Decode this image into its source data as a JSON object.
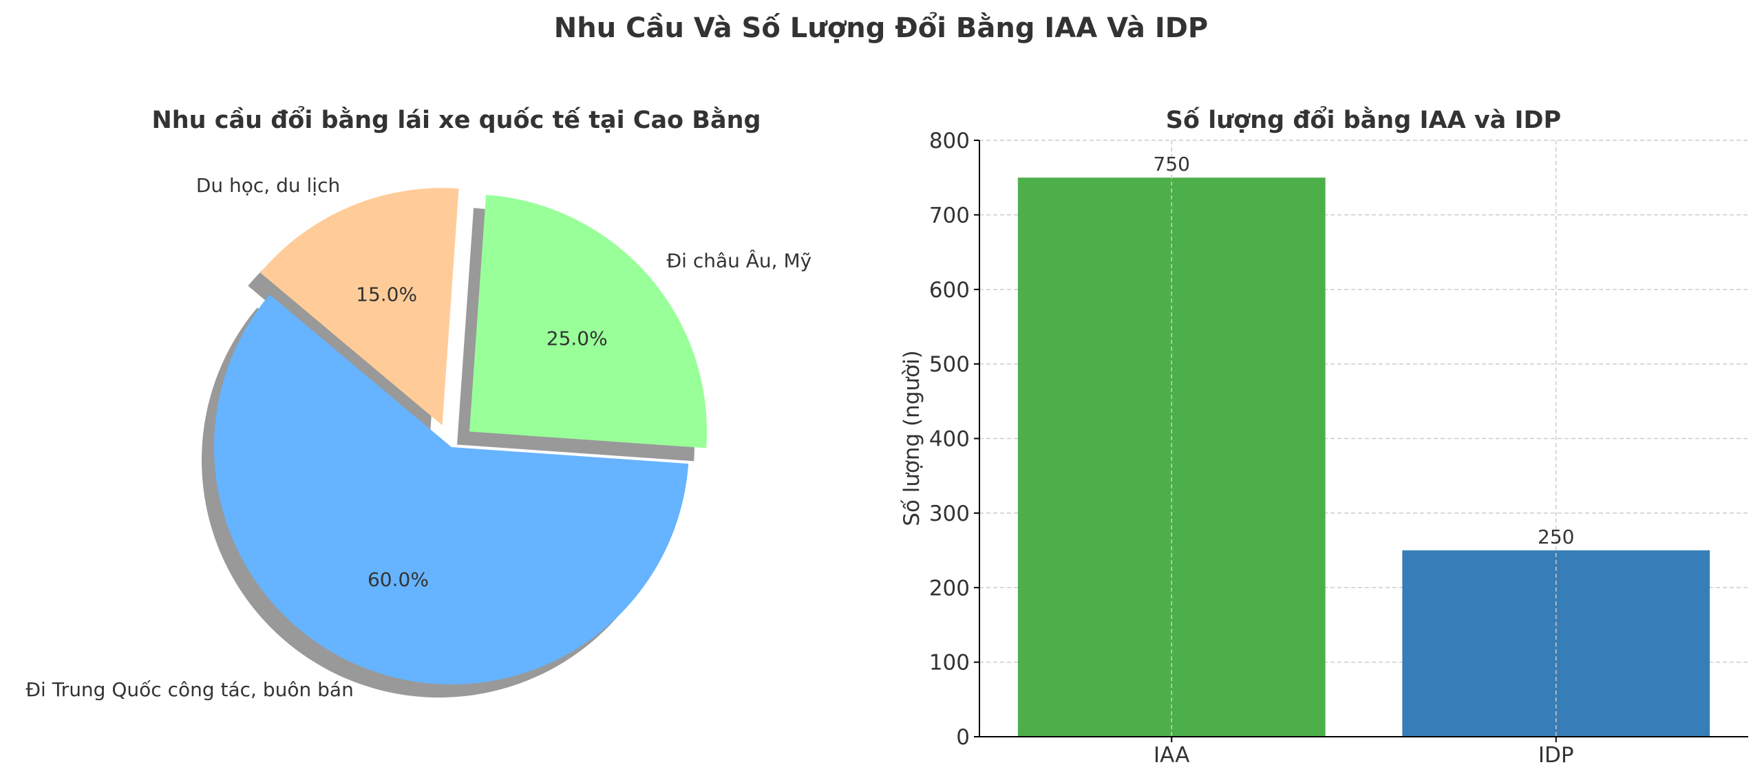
{
  "suptitle": "Nhu Cầu Và Số Lượng Đổi Bằng IAA Và IDP",
  "colors": {
    "text": "#333333",
    "grid": "#cccccc",
    "shadow": "#808080"
  },
  "chart_data": [
    {
      "type": "pie",
      "title": "Nhu cầu đổi bằng lái xe quốc tế tại Cao Bằng",
      "slices": [
        {
          "label": "Đi Trung Quốc công tác, buôn bán",
          "value": 60,
          "pct_label": "60.0%",
          "color": "#66b3ff",
          "exploded": false
        },
        {
          "label": "Đi châu Âu, Mỹ",
          "value": 25,
          "pct_label": "25.0%",
          "color": "#99ff99",
          "exploded": true
        },
        {
          "label": "Du học, du lịch",
          "value": 15,
          "pct_label": "15.0%",
          "color": "#ffcc99",
          "exploded": true
        }
      ],
      "shadow": true
    },
    {
      "type": "bar",
      "title": "Số lượng đổi bằng IAA và IDP",
      "categories": [
        "IAA",
        "IDP"
      ],
      "values": [
        750,
        250
      ],
      "colors": [
        "#4daf4a",
        "#377eb8"
      ],
      "ylabel": "Số lượng (người)",
      "xlabel": "",
      "ylim": [
        0,
        800
      ],
      "yticks": [
        0,
        100,
        200,
        300,
        400,
        500,
        600,
        700,
        800
      ],
      "grid": true
    }
  ]
}
